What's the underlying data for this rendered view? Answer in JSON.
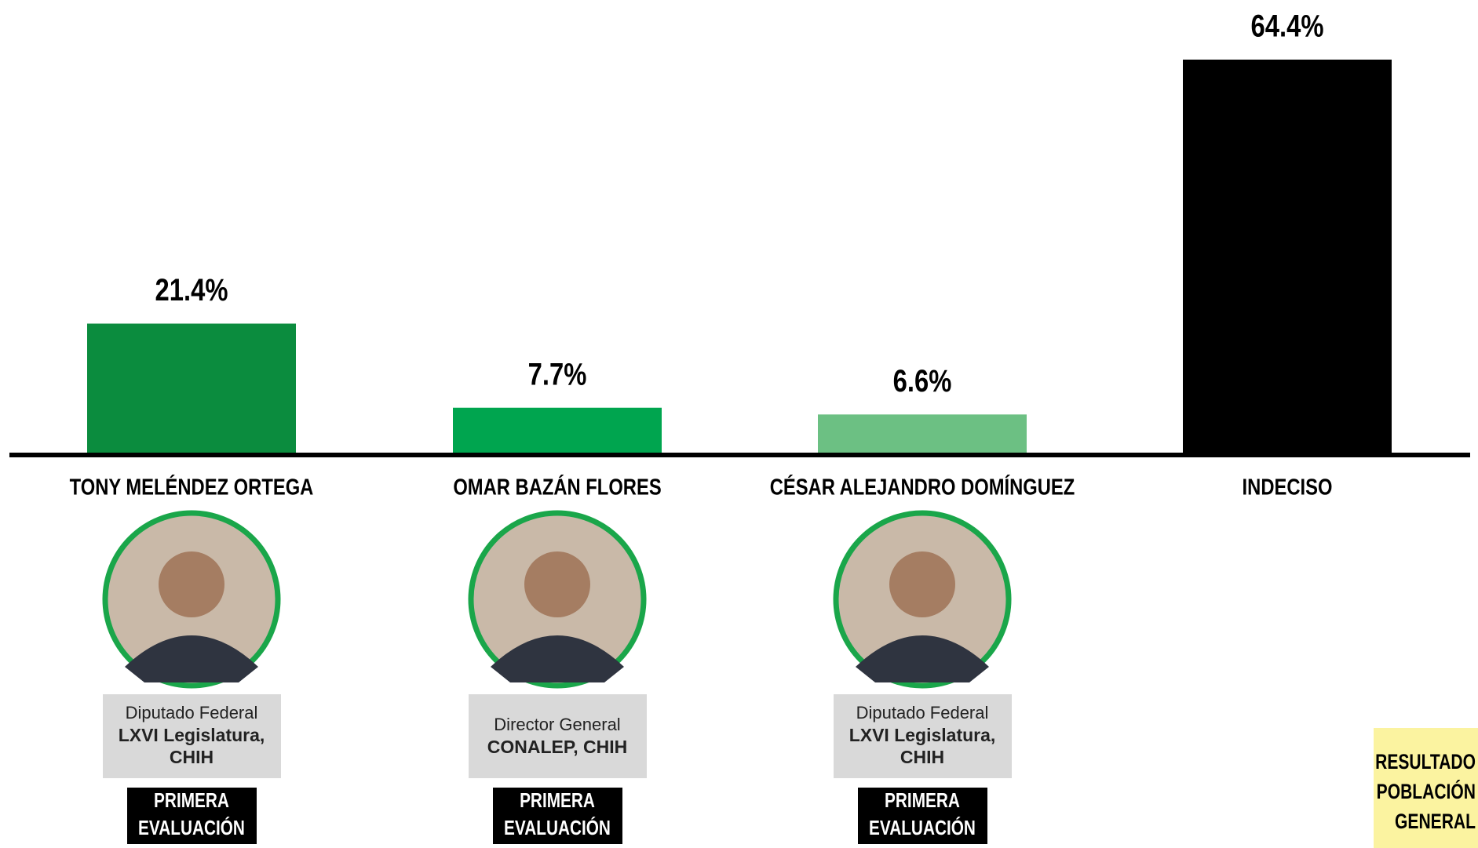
{
  "chart_data": {
    "type": "bar",
    "categories": [
      "TONY MELÉNDEZ ORTEGA",
      "OMAR BAZÁN FLORES",
      "CÉSAR ALEJANDRO DOMÍNGUEZ",
      "INDECISO"
    ],
    "values": [
      21.4,
      7.7,
      6.6,
      64.4
    ],
    "value_labels": [
      "21.4%",
      "7.7%",
      "6.6%",
      "64.4%"
    ],
    "colors": [
      "#0b8c3e",
      "#00a54f",
      "#6cc083",
      "#000000"
    ],
    "ylim": [
      0,
      64.4
    ]
  },
  "profiles": [
    {
      "role": "Diputado Federal",
      "detail": [
        "LXVI Legislatura,",
        "CHIH"
      ],
      "badge": [
        "PRIMERA",
        "EVALUACIÓN"
      ]
    },
    {
      "role": "Director General",
      "detail": [
        "CONALEP, CHIH"
      ],
      "badge": [
        "PRIMERA",
        "EVALUACIÓN"
      ]
    },
    {
      "role": "Diputado Federal",
      "detail": [
        "LXVI Legislatura,",
        "CHIH"
      ],
      "badge": [
        "PRIMERA",
        "EVALUACIÓN"
      ]
    }
  ],
  "note": [
    "RESULTADO",
    "POBLACIÓN",
    "GENERAL"
  ]
}
